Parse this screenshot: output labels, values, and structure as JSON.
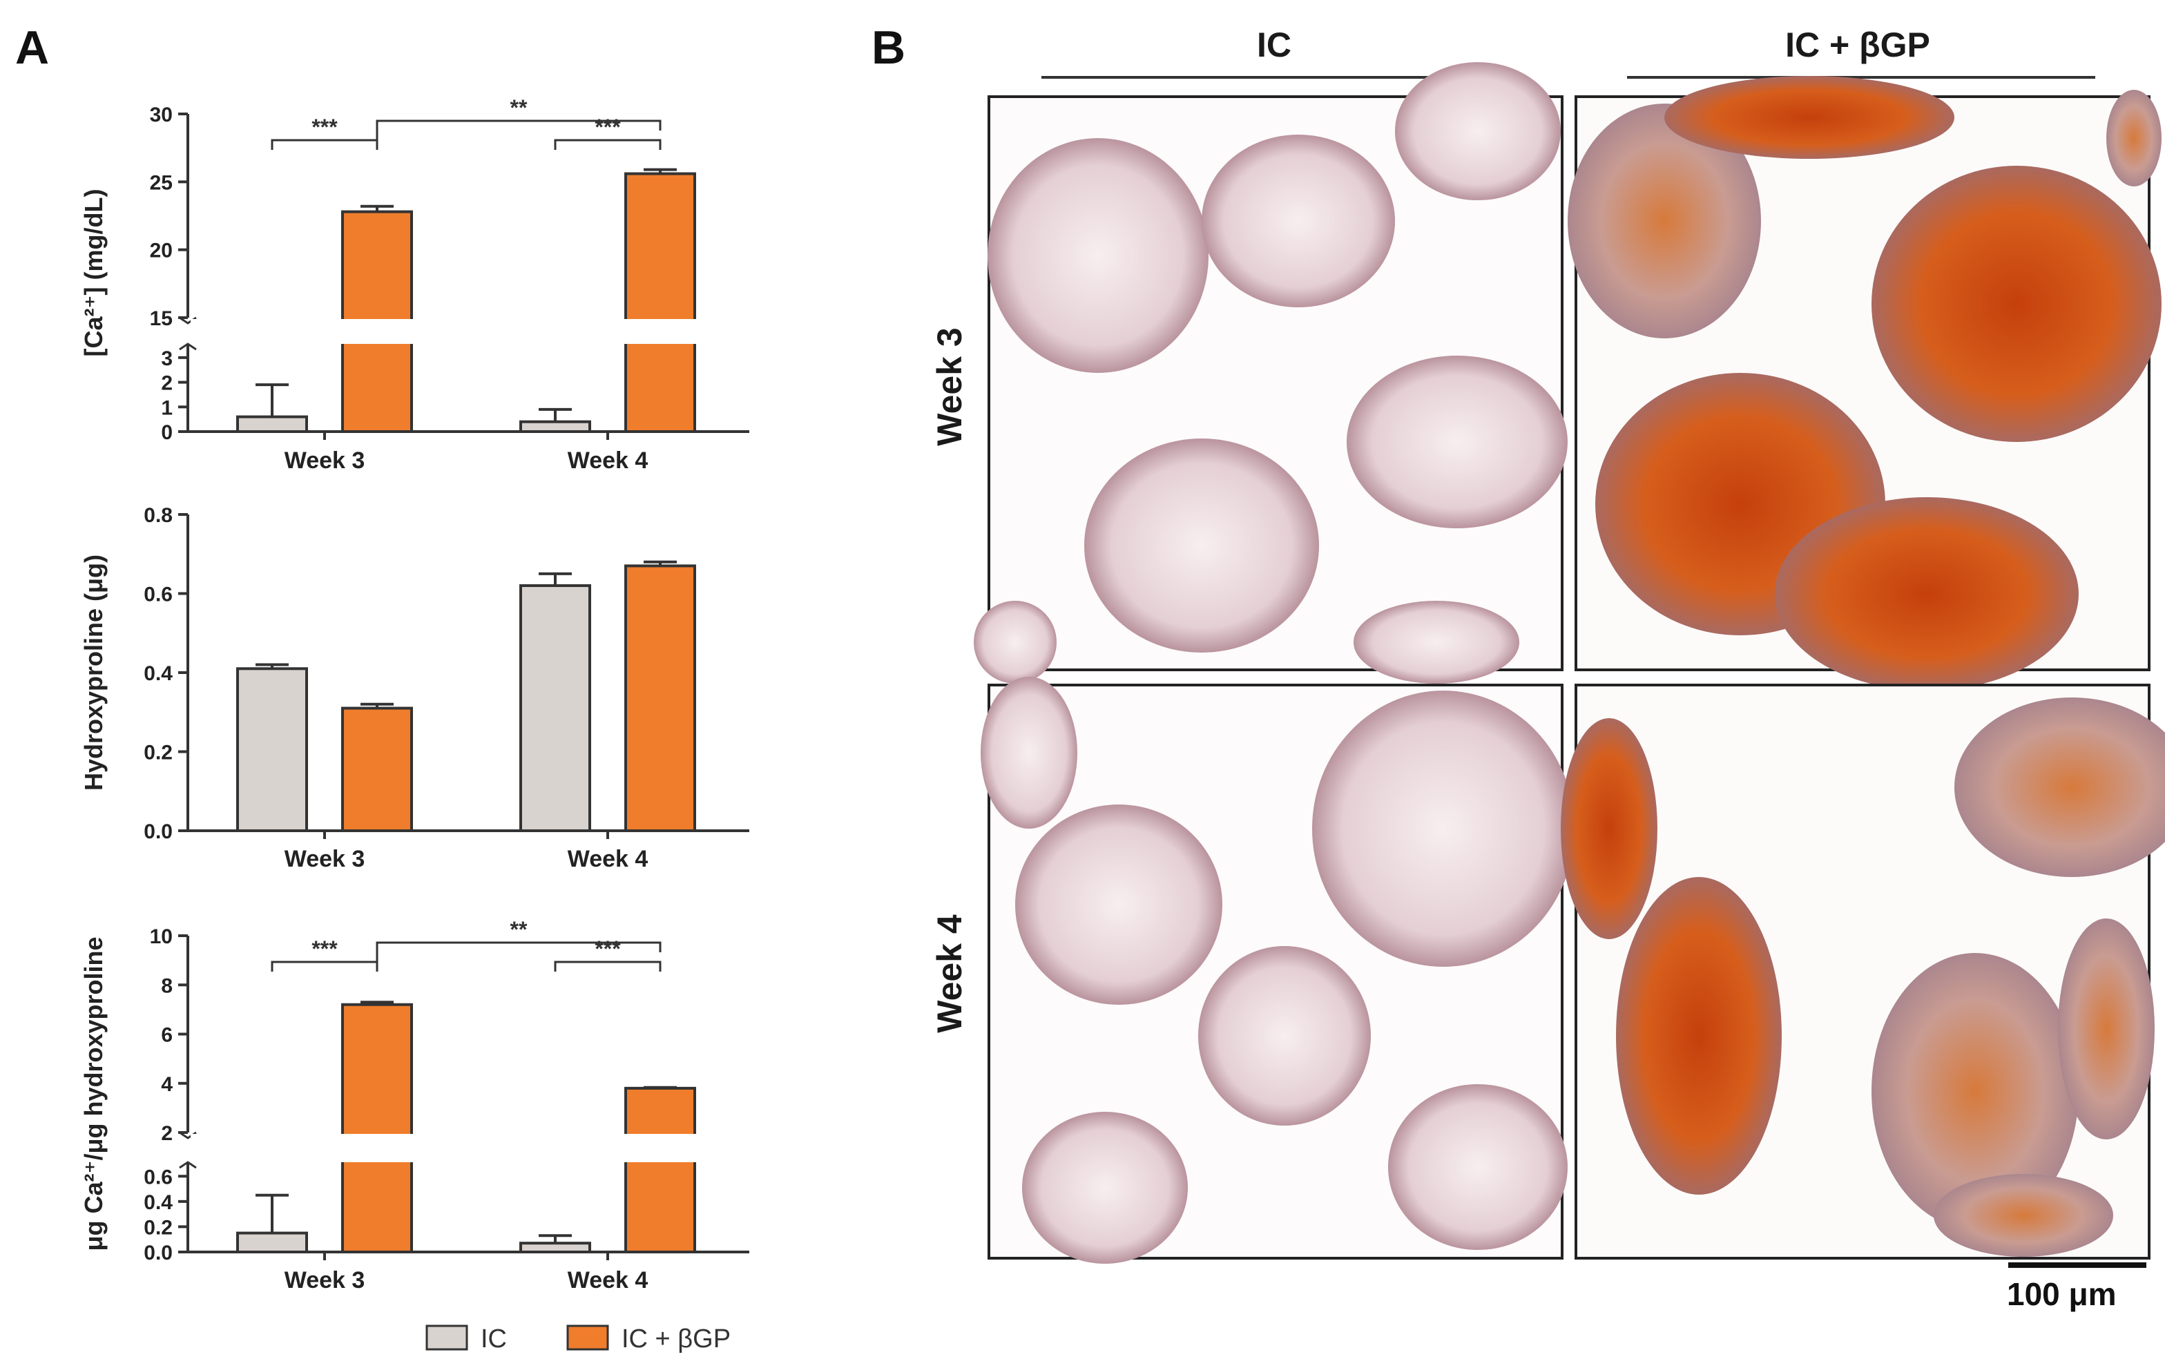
{
  "panels": {
    "a_label": "A",
    "b_label": "B"
  },
  "legend": {
    "ic": "IC",
    "ic_bgp": "IC + βGP"
  },
  "micrographs": {
    "col_ic": "IC",
    "col_ic_bgp": "IC + βGP",
    "row_week3": "Week 3",
    "row_week4": "Week 4",
    "scale_bar": "100 μm"
  },
  "colors": {
    "ic": "#d9d3cf",
    "ic_bgp": "#ef7d2c",
    "axis": "#333333"
  },
  "chart_data": [
    {
      "type": "bar",
      "ylabel": "[Ca²⁺] (mg/dL)",
      "categories": [
        "Week 3",
        "Week 4"
      ],
      "y_axis_break": {
        "lower": [
          0,
          3.5
        ],
        "upper": [
          15,
          30
        ]
      },
      "yticks_lower": [
        "0",
        "1",
        "2",
        "3"
      ],
      "yticks_upper": [
        "15",
        "20",
        "25",
        "30"
      ],
      "series": [
        {
          "name": "IC",
          "values": [
            0.6,
            0.4
          ],
          "errors": [
            1.3,
            0.5
          ]
        },
        {
          "name": "IC + βGP",
          "values": [
            22.8,
            25.6
          ],
          "errors": [
            0.4,
            0.3
          ]
        }
      ],
      "significance": [
        {
          "label": "***",
          "from": "Week 3 IC",
          "to": "Week 3 IC + βGP"
        },
        {
          "label": "***",
          "from": "Week 4 IC",
          "to": "Week 4 IC + βGP"
        },
        {
          "label": "**",
          "from": "Week 3 IC + βGP",
          "to": "Week 4 IC + βGP"
        }
      ]
    },
    {
      "type": "bar",
      "ylabel": "Hydroxyproline (μg)",
      "categories": [
        "Week 3",
        "Week 4"
      ],
      "ylim": [
        0,
        0.8
      ],
      "yticks": [
        "0.0",
        "0.2",
        "0.4",
        "0.6",
        "0.8"
      ],
      "series": [
        {
          "name": "IC",
          "values": [
            0.41,
            0.62
          ],
          "errors": [
            0.01,
            0.03
          ]
        },
        {
          "name": "IC + βGP",
          "values": [
            0.31,
            0.67
          ],
          "errors": [
            0.01,
            0.01
          ]
        }
      ]
    },
    {
      "type": "bar",
      "ylabel": "μg Ca²⁺/μg hydroxyproline",
      "categories": [
        "Week 3",
        "Week 4"
      ],
      "y_axis_break": {
        "lower": [
          0,
          0.7
        ],
        "upper": [
          2,
          10
        ]
      },
      "yticks_lower": [
        "0.0",
        "0.2",
        "0.4",
        "0.6"
      ],
      "yticks_upper": [
        "2",
        "4",
        "6",
        "8",
        "10"
      ],
      "series": [
        {
          "name": "IC",
          "values": [
            0.15,
            0.07
          ],
          "errors": [
            0.3,
            0.06
          ]
        },
        {
          "name": "IC + βGP",
          "values": [
            7.2,
            3.8
          ],
          "errors": [
            0.1,
            0.03
          ]
        }
      ],
      "significance": [
        {
          "label": "***",
          "from": "Week 3 IC",
          "to": "Week 3 IC + βGP"
        },
        {
          "label": "***",
          "from": "Week 4 IC",
          "to": "Week 4 IC + βGP"
        },
        {
          "label": "**",
          "from": "Week 3 IC + βGP",
          "to": "Week 4 IC + βGP"
        }
      ]
    }
  ]
}
